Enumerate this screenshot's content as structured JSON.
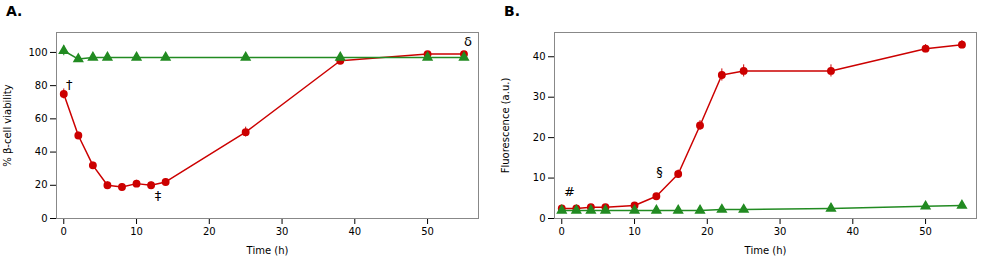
{
  "chart_data": [
    {
      "type": "line",
      "title": "A.",
      "x_label": "Time (h)",
      "y_label": "% β-cell viability",
      "xlim": [
        -1,
        57
      ],
      "ylim": [
        0,
        112
      ],
      "xticks": [
        0,
        10,
        20,
        30,
        40,
        50
      ],
      "yticks": [
        0,
        20,
        40,
        60,
        80,
        100
      ],
      "series": [
        {
          "color": "#cc0000",
          "marker": "circle",
          "x": [
            0,
            2,
            4,
            6,
            8,
            10,
            12,
            14,
            25,
            38,
            50,
            55
          ],
          "values": [
            75,
            50,
            32,
            20,
            19,
            21,
            20,
            22,
            52,
            95,
            99,
            99
          ],
          "yerr": [
            3,
            2,
            2,
            2,
            2,
            2,
            2,
            2,
            3,
            2,
            1,
            1
          ]
        },
        {
          "color": "#228B22",
          "marker": "triangle",
          "x": [
            0,
            2,
            4,
            6,
            10,
            14,
            25,
            38,
            50,
            55
          ],
          "values": [
            101,
            96,
            97,
            97,
            97,
            97,
            97,
            97,
            97,
            97
          ],
          "yerr": [
            3,
            2,
            1.5,
            1.5,
            1.5,
            1.5,
            1.5,
            1.5,
            1.5,
            1.5
          ]
        }
      ],
      "annotations": [
        {
          "text": "†",
          "x": 0.3,
          "y": 78
        },
        {
          "text": "‡",
          "x": 12.5,
          "y": 11
        },
        {
          "text": "δ",
          "x": 55.0,
          "y": 104
        }
      ]
    },
    {
      "type": "line",
      "title": "B.",
      "x_label": "Time (h)",
      "y_label": "Fluorescence (a.u.)",
      "xlim": [
        -1,
        57
      ],
      "ylim": [
        0,
        46
      ],
      "xticks": [
        0,
        10,
        20,
        30,
        40,
        50
      ],
      "yticks": [
        0,
        10,
        20,
        30,
        40
      ],
      "series": [
        {
          "color": "#cc0000",
          "marker": "circle",
          "x": [
            0,
            2,
            4,
            6,
            10,
            13,
            16,
            19,
            22,
            25,
            37,
            50,
            55
          ],
          "values": [
            2.5,
            2.5,
            2.8,
            2.8,
            3.2,
            5.5,
            11.0,
            23.0,
            35.5,
            36.5,
            36.5,
            42.0,
            43.0
          ],
          "yerr": [
            0.3,
            0.3,
            0.3,
            0.3,
            0.4,
            0.6,
            1.0,
            1.2,
            1.5,
            1.5,
            1.5,
            1.0,
            1.0
          ]
        },
        {
          "color": "#228B22",
          "marker": "triangle",
          "x": [
            0,
            2,
            4,
            6,
            10,
            13,
            16,
            19,
            22,
            25,
            37,
            50,
            55
          ],
          "values": [
            2.0,
            2.0,
            2.0,
            2.0,
            2.0,
            2.0,
            2.0,
            2.0,
            2.2,
            2.2,
            2.5,
            3.0,
            3.2
          ],
          "yerr": [
            0.2,
            0.2,
            0.2,
            0.2,
            0.2,
            0.2,
            0.2,
            0.2,
            0.2,
            0.2,
            0.2,
            0.2,
            0.2
          ]
        }
      ],
      "annotations": [
        {
          "text": "#",
          "x": 0.3,
          "y": 5.5
        },
        {
          "text": "§",
          "x": 13.0,
          "y": 10.5
        }
      ]
    }
  ]
}
